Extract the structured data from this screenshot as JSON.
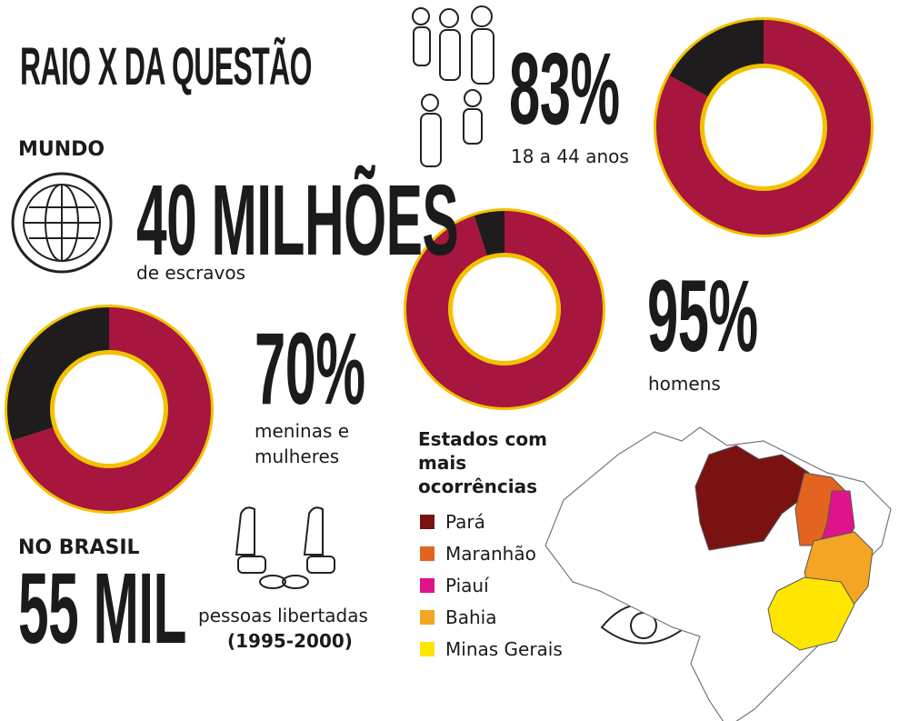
{
  "title": "RAIO X DA QUESTÃO",
  "world": {
    "heading": "MUNDO",
    "amount": "40 MILHÕES",
    "caption": "de escravos"
  },
  "donuts": {
    "values": [
      83,
      70,
      95
    ],
    "value_labels": [
      "83%",
      "70%",
      "95%"
    ],
    "captions": [
      "18 a 44 anos",
      "meninas e mulheres",
      "homens"
    ],
    "color": "#a6163e",
    "rest_color": "#1f1c1d",
    "outline_color": "#f2c200"
  },
  "brazil": {
    "heading": "NO BRASIL",
    "amount": "55 MIL",
    "caption": "pessoas libertadas",
    "period": "(1995-2000)"
  },
  "states": {
    "heading": "Estados com mais ocorrências",
    "items": [
      {
        "name": "Pará",
        "color": "#7b1212"
      },
      {
        "name": "Maranhão",
        "color": "#e3641e"
      },
      {
        "name": "Piauí",
        "color": "#e0148a"
      },
      {
        "name": "Bahia",
        "color": "#f4a523"
      },
      {
        "name": "Minas Gerais",
        "color": "#ffe600"
      }
    ]
  }
}
